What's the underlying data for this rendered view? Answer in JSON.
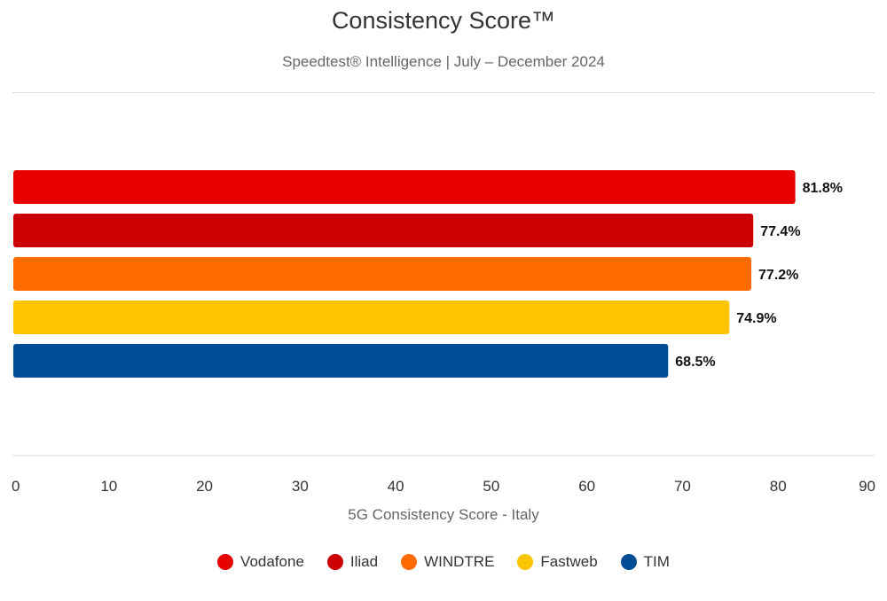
{
  "chart_data": {
    "type": "bar",
    "orientation": "horizontal",
    "title": "Consistency Score™",
    "subtitle": "Speedtest® Intelligence | July – December 2024",
    "xlabel": "5G Consistency Score - Italy",
    "categories": [
      "Vodafone",
      "Iliad",
      "WINDTRE",
      "Fastweb",
      "TIM"
    ],
    "values": [
      81.8,
      77.4,
      77.2,
      74.9,
      68.5
    ],
    "value_labels": [
      "81.8%",
      "77.4%",
      "77.2%",
      "74.9%",
      "68.5%"
    ],
    "colors": [
      "#e60000",
      "#cc0000",
      "#ff6b00",
      "#fcc500",
      "#004c97"
    ],
    "xlim": [
      0,
      90
    ],
    "xticks": [
      0,
      10,
      20,
      30,
      40,
      50,
      60,
      70,
      80,
      90
    ],
    "legend_position": "bottom",
    "legend": [
      "Vodafone",
      "Iliad",
      "WINDTRE",
      "Fastweb",
      "TIM"
    ]
  }
}
